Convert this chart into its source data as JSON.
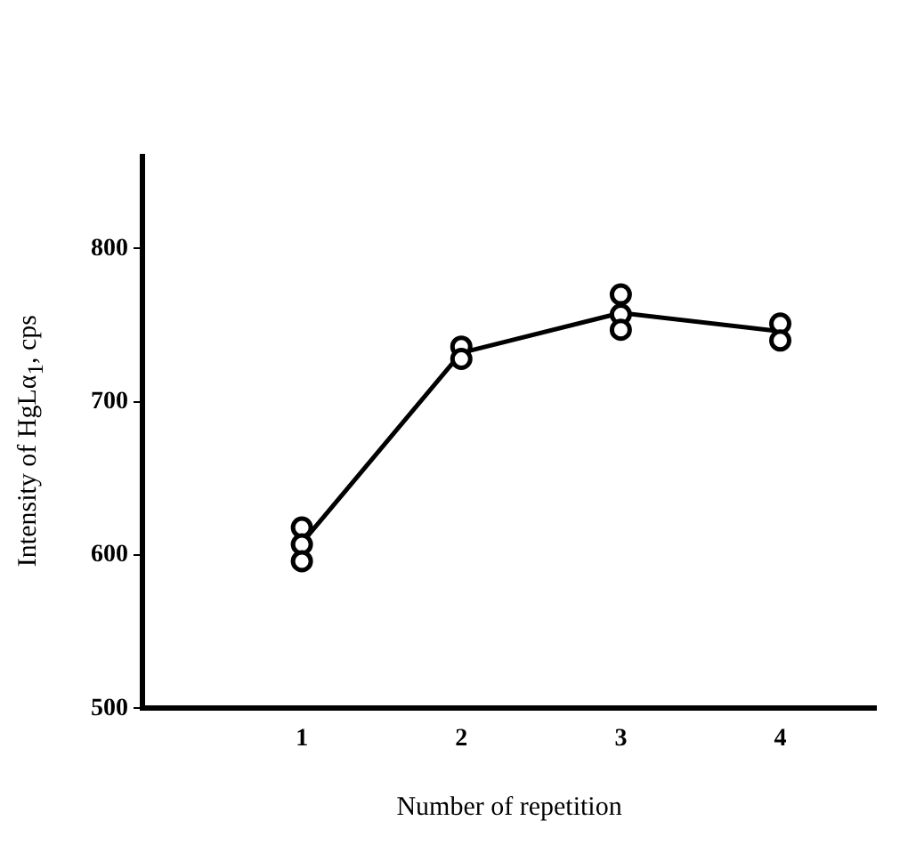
{
  "chart_data": {
    "type": "scatter",
    "xlabel": "Number of repetition",
    "ylabel": "Intensity of HgLα$_{1}$, cps",
    "series": [
      {
        "type": "scatter",
        "color": "#000000",
        "marker": "circle",
        "x": [
          1,
          1,
          1,
          2,
          2,
          3,
          3,
          3,
          4,
          4
        ],
        "values": [
          618,
          607,
          596,
          736,
          728,
          770,
          757,
          747,
          751,
          740
        ]
      },
      {
        "type": "line",
        "color": "#000000",
        "marker": "none",
        "line_style": "solid",
        "x": [
          1,
          2,
          3,
          4
        ],
        "values": [
          608,
          732,
          758,
          746
        ]
      }
    ],
    "xlim": [
      0,
      4.6
    ],
    "xticks": [
      1,
      2,
      3,
      4
    ],
    "ylim": [
      500,
      860
    ],
    "yticks": [
      500,
      600,
      700,
      800
    ],
    "grid": false,
    "legend": false
  }
}
